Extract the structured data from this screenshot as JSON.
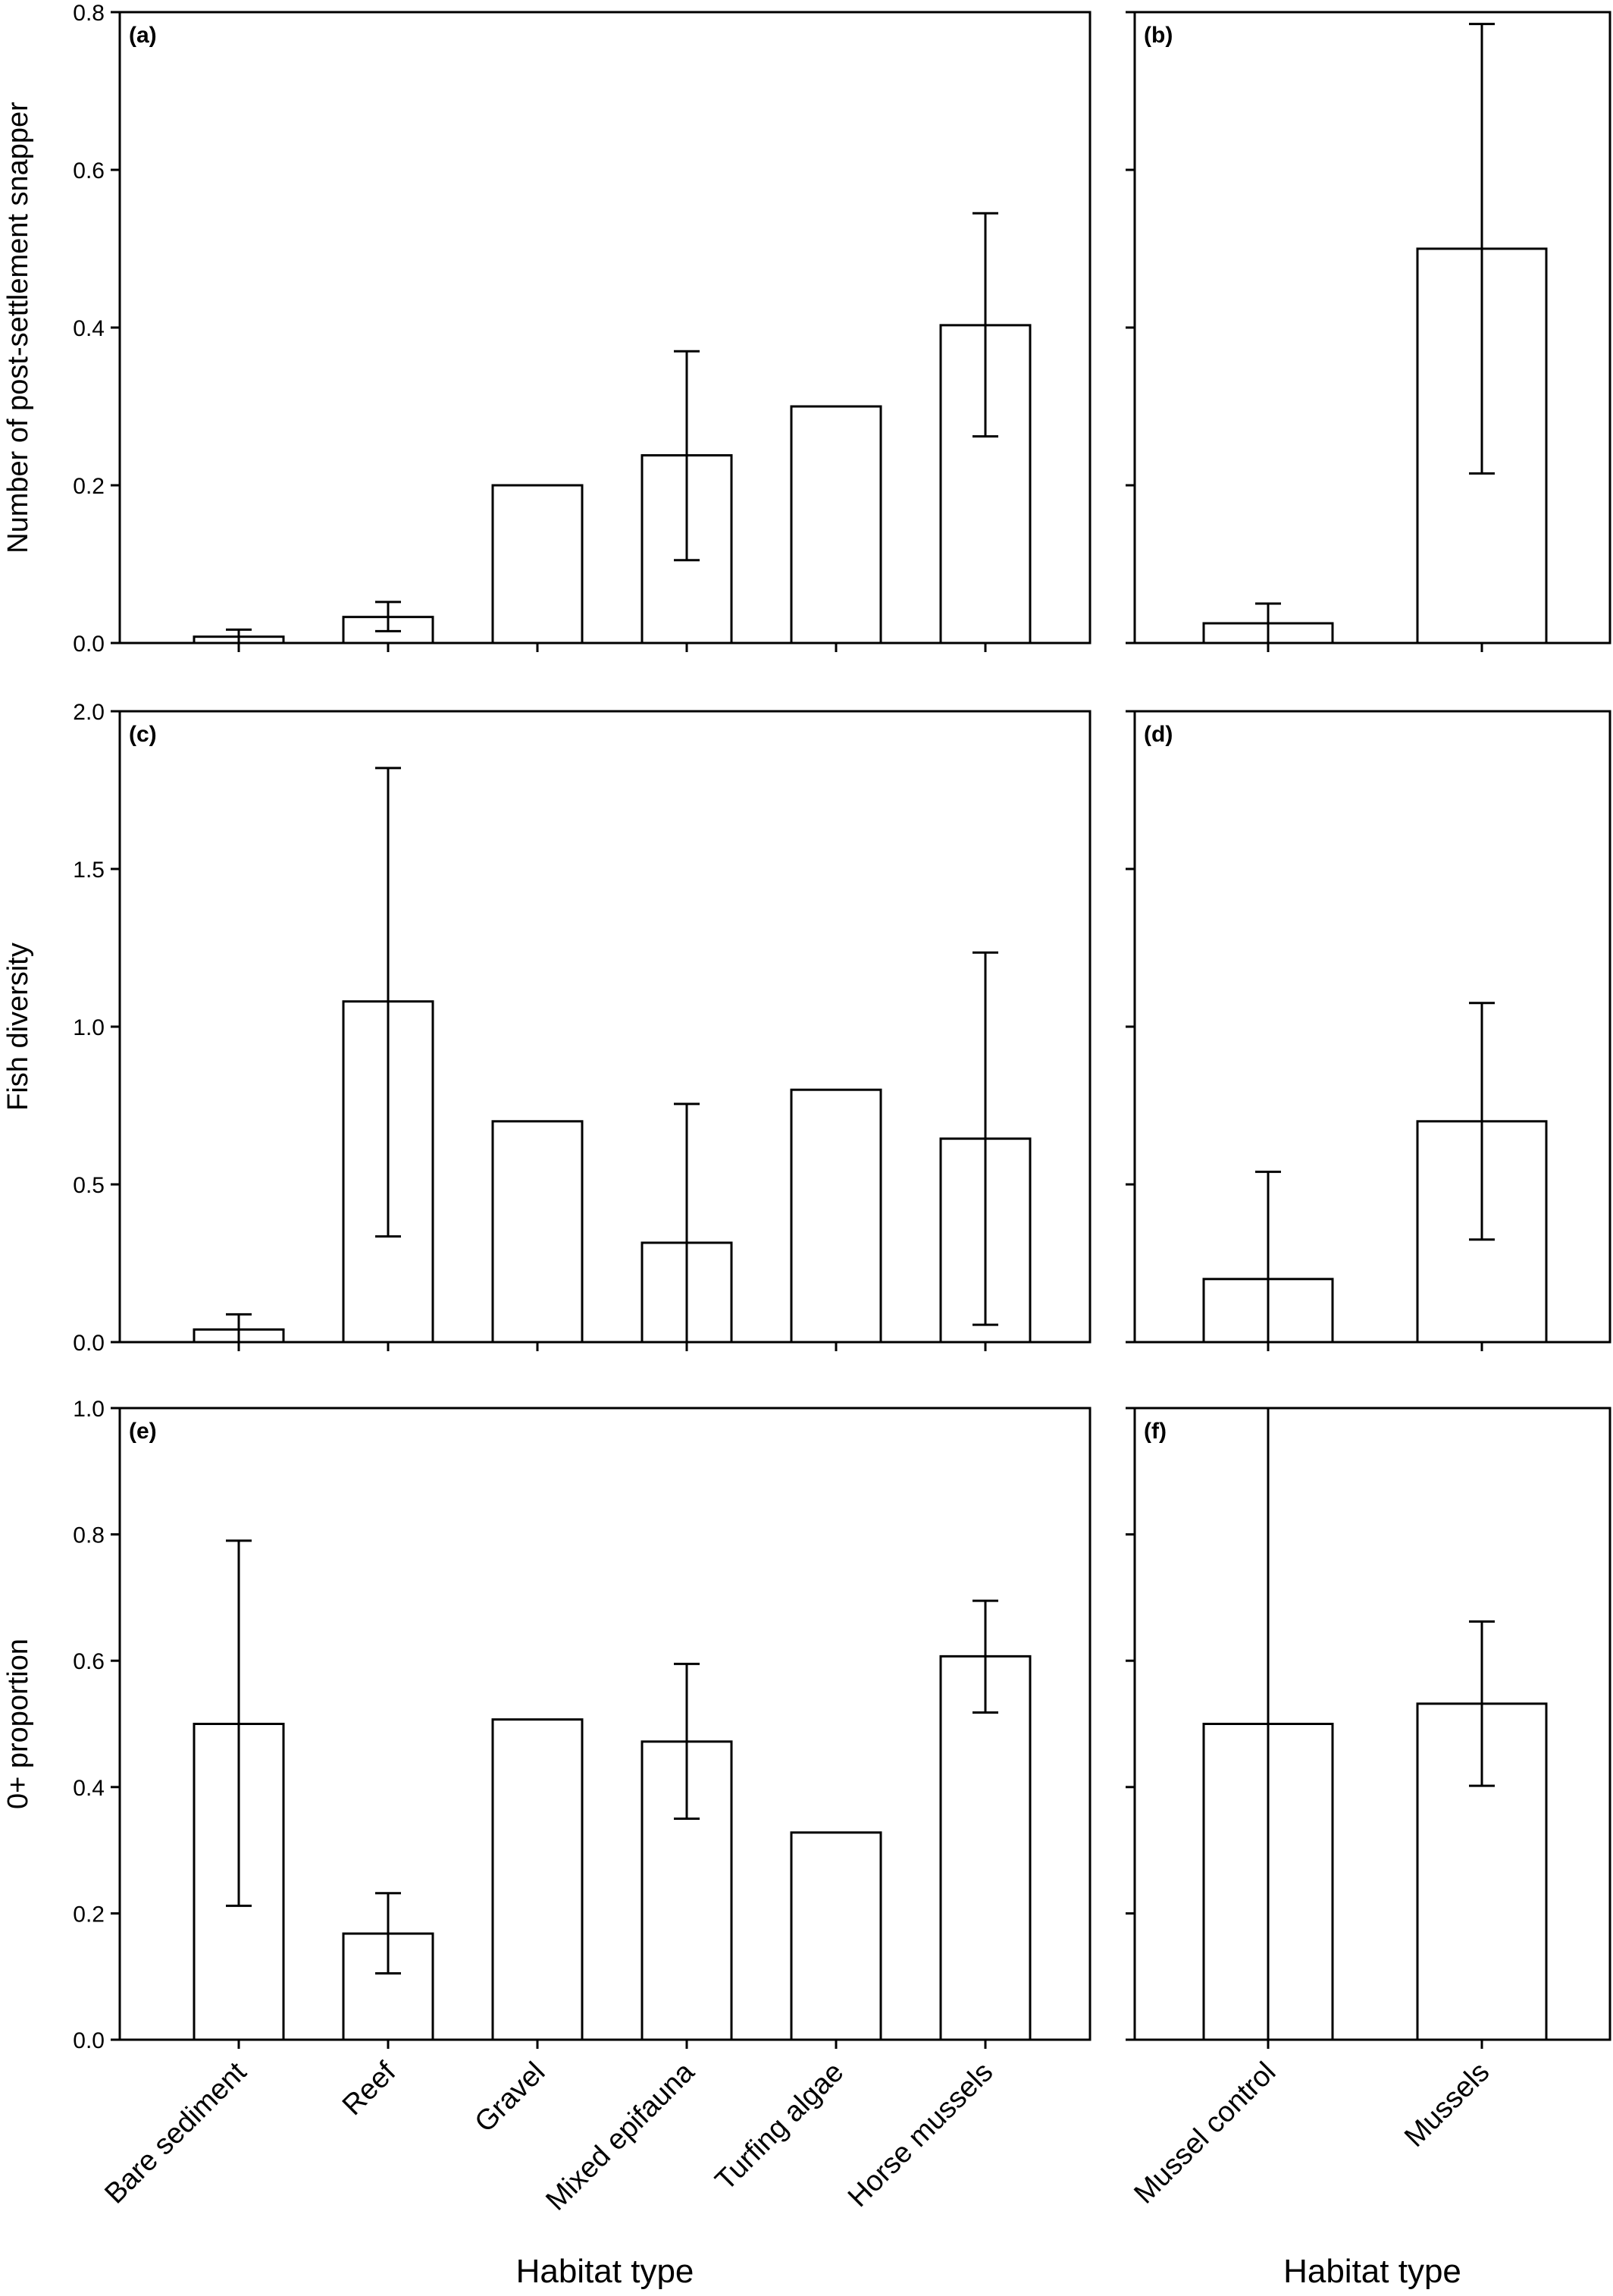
{
  "chart_data": [
    {
      "id": "a",
      "type": "bar",
      "panel_label": "(a)",
      "ylabel": "Number of post-settlement snapper",
      "ylim": [
        0,
        0.8
      ],
      "yticks": [
        0.0,
        0.2,
        0.4,
        0.6,
        0.8
      ],
      "categories": [
        "Bare sediment",
        "Reef",
        "Gravel",
        "Mixed epifauna",
        "Turfing algae",
        "Horse mussels"
      ],
      "values": [
        0.008,
        0.033,
        0.2,
        0.238,
        0.3,
        0.403
      ],
      "err_low": [
        0.0,
        0.015,
        null,
        0.105,
        null,
        0.262
      ],
      "err_high": [
        0.017,
        0.052,
        null,
        0.37,
        null,
        0.545
      ]
    },
    {
      "id": "b",
      "type": "bar",
      "panel_label": "(b)",
      "ylim": [
        0,
        0.8
      ],
      "yticks": [
        0.0,
        0.2,
        0.4,
        0.6,
        0.8
      ],
      "categories": [
        "Mussel control",
        "Mussels"
      ],
      "values": [
        0.025,
        0.5
      ],
      "err_low": [
        0.0,
        0.215
      ],
      "err_high": [
        0.05,
        0.785
      ]
    },
    {
      "id": "c",
      "type": "bar",
      "panel_label": "(c)",
      "ylabel": "Fish diversity",
      "ylim": [
        0,
        2.0
      ],
      "yticks": [
        0.0,
        0.5,
        1.0,
        1.5,
        2.0
      ],
      "categories": [
        "Bare sediment",
        "Reef",
        "Gravel",
        "Mixed epifauna",
        "Turfing algae",
        "Horse mussels"
      ],
      "values": [
        0.04,
        1.08,
        0.7,
        0.315,
        0.8,
        0.645
      ],
      "err_low": [
        0.0,
        0.335,
        null,
        0.0,
        null,
        0.055
      ],
      "err_high": [
        0.088,
        1.82,
        null,
        0.755,
        null,
        1.235
      ]
    },
    {
      "id": "d",
      "type": "bar",
      "panel_label": "(d)",
      "ylim": [
        0,
        2.0
      ],
      "yticks": [
        0.0,
        0.5,
        1.0,
        1.5,
        2.0
      ],
      "categories": [
        "Mussel control",
        "Mussels"
      ],
      "values": [
        0.2,
        0.7
      ],
      "err_low": [
        0.0,
        0.325
      ],
      "err_high": [
        0.54,
        1.075
      ]
    },
    {
      "id": "e",
      "type": "bar",
      "panel_label": "(e)",
      "ylabel": "0+ proportion",
      "xlabel": "Habitat type",
      "ylim": [
        0,
        1.0
      ],
      "yticks": [
        0.0,
        0.2,
        0.4,
        0.6,
        0.8,
        1.0
      ],
      "categories": [
        "Bare sediment",
        "Reef",
        "Gravel",
        "Mixed epifauna",
        "Turfing algae",
        "Horse mussels"
      ],
      "values": [
        0.5,
        0.168,
        0.507,
        0.472,
        0.328,
        0.607
      ],
      "err_low": [
        0.212,
        0.105,
        null,
        0.35,
        null,
        0.518
      ],
      "err_high": [
        0.79,
        0.232,
        null,
        0.595,
        null,
        0.695
      ]
    },
    {
      "id": "f",
      "type": "bar",
      "panel_label": "(f)",
      "xlabel": "Habitat type",
      "ylim": [
        0,
        1.0
      ],
      "yticks": [
        0.0,
        0.2,
        0.4,
        0.6,
        0.8,
        1.0
      ],
      "categories": [
        "Mussel control",
        "Mussels"
      ],
      "values": [
        0.5,
        0.532
      ],
      "err_low": [
        0.0,
        0.402
      ],
      "err_high": [
        1.0,
        0.662
      ]
    }
  ]
}
